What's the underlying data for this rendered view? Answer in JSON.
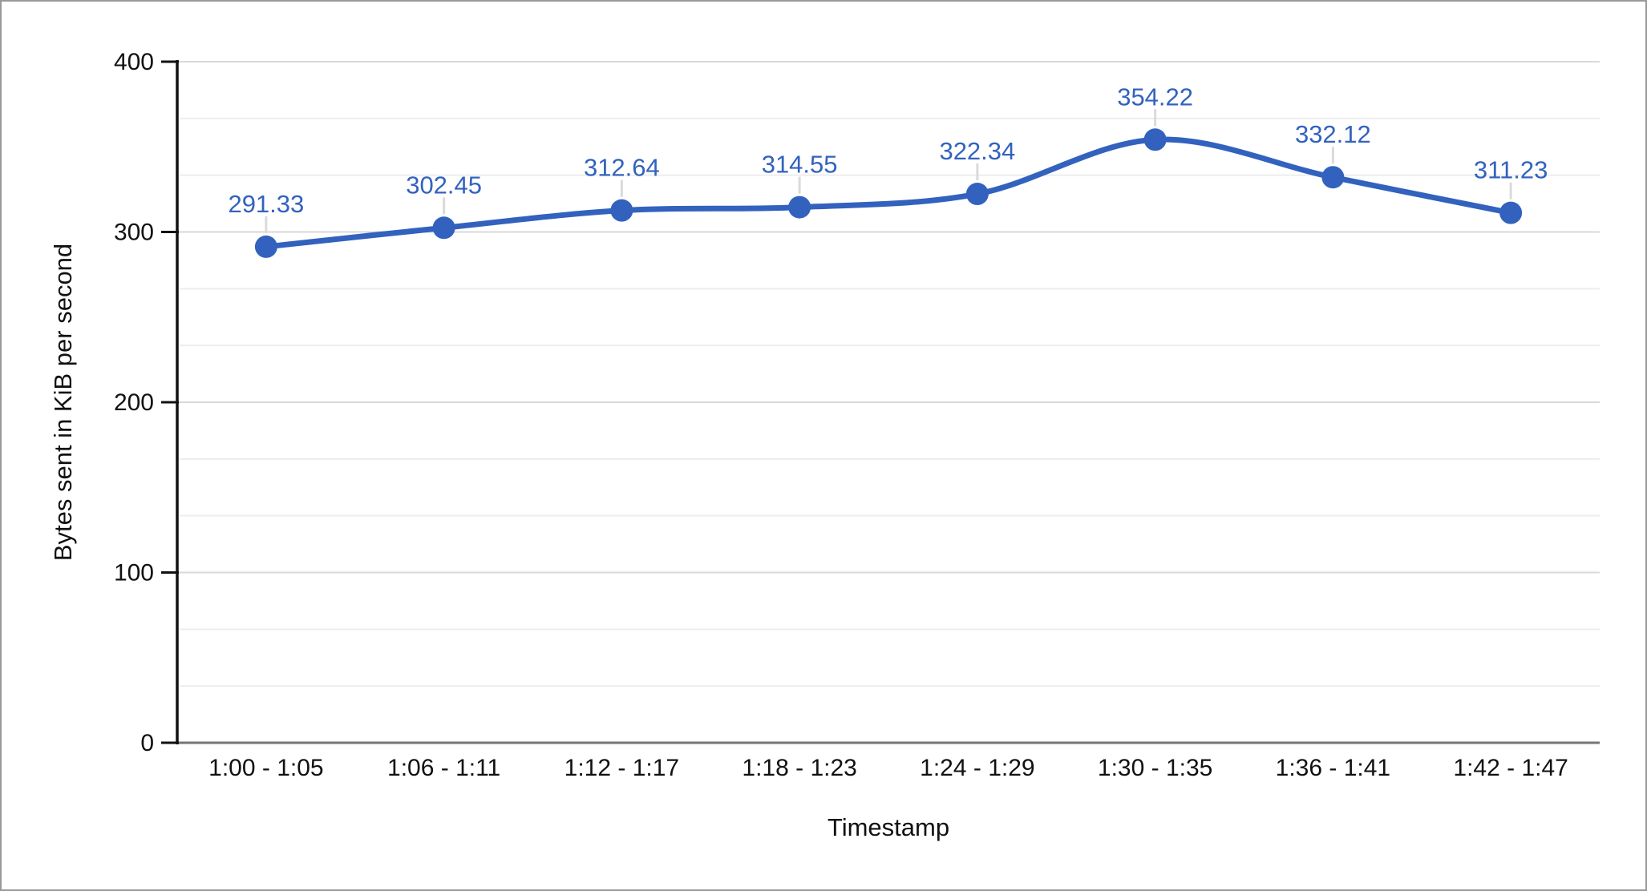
{
  "chart_data": {
    "type": "line",
    "smooth": true,
    "title": "",
    "xlabel": "Timestamp",
    "ylabel": "Bytes sent in KiB per second",
    "categories": [
      "1:00 - 1:05",
      "1:06 - 1:11",
      "1:12 - 1:17",
      "1:18 - 1:23",
      "1:24 - 1:29",
      "1:30 - 1:35",
      "1:36 - 1:41",
      "1:42 - 1:47"
    ],
    "values": [
      291.33,
      302.45,
      312.64,
      314.55,
      322.34,
      354.22,
      332.12,
      311.23
    ],
    "data_labels": [
      "291.33",
      "302.45",
      "312.64",
      "314.55",
      "322.34",
      "354.22",
      "332.12",
      "311.23"
    ],
    "ylim": [
      0,
      400
    ],
    "yticks": [
      0,
      100,
      200,
      300,
      400
    ],
    "ytick_labels": [
      "0",
      "100",
      "200",
      "300",
      "400"
    ],
    "minor_gridlines_between_majors": 2,
    "grid": true,
    "legend": "none"
  },
  "colors": {
    "series_line": "#3262be",
    "marker": "#3262be",
    "data_label": "#3262be",
    "major_gridline": "#d9d9d9",
    "minor_gridline": "#ededed",
    "baseline": "#757575",
    "axis_line": "#111111",
    "tick_label": "#111111",
    "axis_title": "#111111",
    "leader_line": "#dadada",
    "frame_border": "#999999",
    "background": "#ffffff"
  }
}
